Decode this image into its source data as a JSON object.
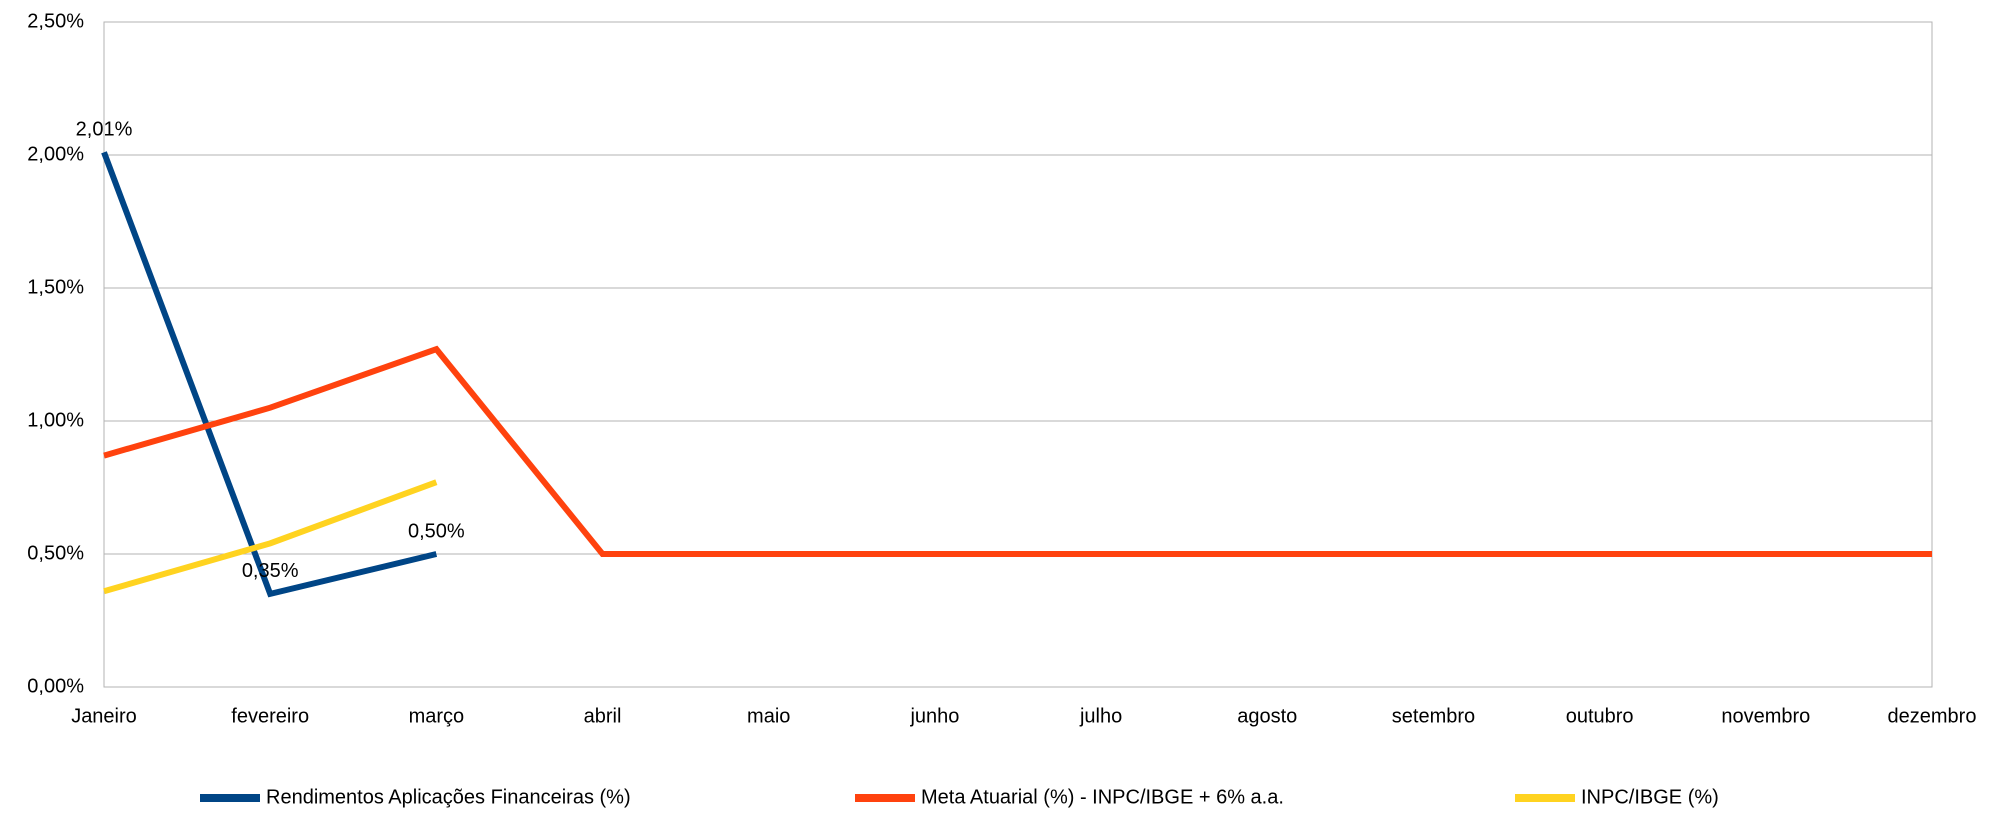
{
  "chart_data": {
    "type": "line",
    "categories": [
      "Janeiro",
      "fevereiro",
      "março",
      "abril",
      "maio",
      "junho",
      "julho",
      "agosto",
      "setembro",
      "outubro",
      "novembro",
      "dezembro"
    ],
    "series": [
      {
        "name": "Rendimentos Aplicações Financeiras (%)",
        "color": "#004586",
        "values": [
          2.01,
          0.35,
          0.5,
          null,
          null,
          null,
          null,
          null,
          null,
          null,
          null,
          null
        ],
        "value_labels": [
          "2,01%",
          "0,35%",
          "0,50%",
          null,
          null,
          null,
          null,
          null,
          null,
          null,
          null,
          null
        ]
      },
      {
        "name": "Meta Atuarial (%) - INPC/IBGE + 6% a.a.",
        "color": "#ff420e",
        "values": [
          0.87,
          1.05,
          1.27,
          0.5,
          0.5,
          0.5,
          0.5,
          0.5,
          0.5,
          0.5,
          0.5,
          0.5
        ]
      },
      {
        "name": "INPC/IBGE (%)",
        "color": "#ffd320",
        "values": [
          0.36,
          0.54,
          0.77,
          null,
          null,
          null,
          null,
          null,
          null,
          null,
          null,
          null
        ]
      }
    ],
    "ylim": [
      0,
      2.5
    ],
    "yticks": [
      {
        "value": 0,
        "label": "0,00%"
      },
      {
        "value": 0.5,
        "label": "0,50%"
      },
      {
        "value": 1,
        "label": "1,00%"
      },
      {
        "value": 1.5,
        "label": "1,50%"
      },
      {
        "value": 2,
        "label": "2,00%"
      },
      {
        "value": 2.5,
        "label": "2,50%"
      }
    ],
    "grid": true,
    "legend": "bottom"
  }
}
